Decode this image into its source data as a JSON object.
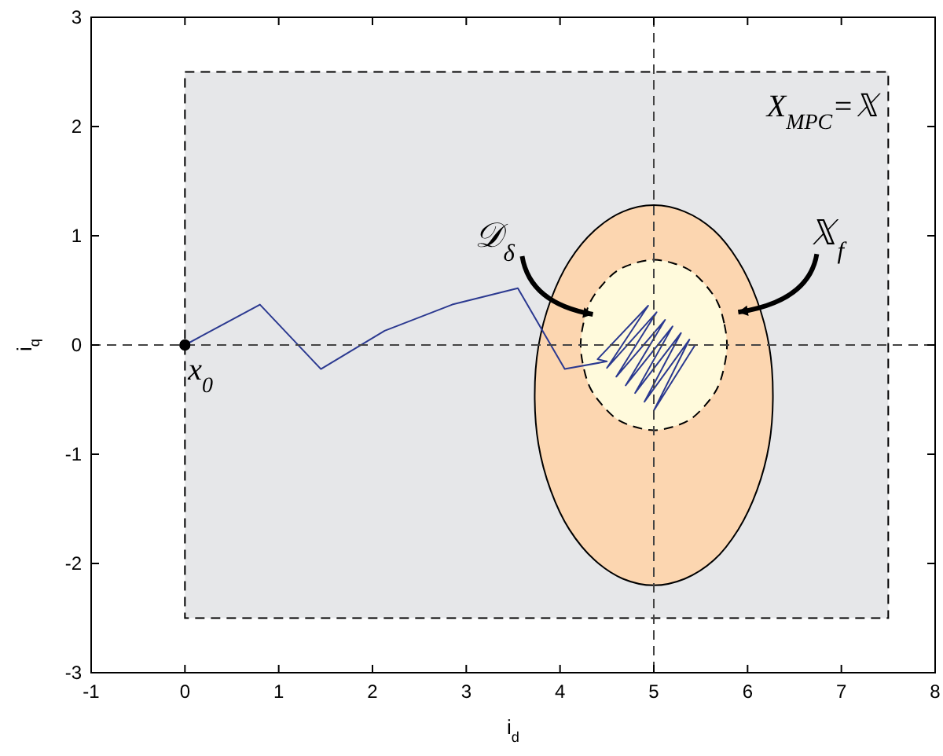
{
  "chart_data": {
    "type": "line",
    "xlabel": "i$_{d}$",
    "ylabel": "i$_{q}$",
    "xlim": [
      -1,
      8
    ],
    "ylim": [
      -3,
      3
    ],
    "xticks": [
      -1,
      0,
      1,
      2,
      3,
      4,
      5,
      6,
      7,
      8
    ],
    "yticks": [
      -3,
      -2,
      -1,
      0,
      1,
      2,
      3
    ],
    "grid": false,
    "series": [
      {
        "type": "area",
        "color": "#e6e7e9",
        "line_style": "dashed",
        "x": [
          0,
          7.5,
          7.5,
          0,
          0
        ],
        "values": [
          2.5,
          2.5,
          -2.5,
          -2.5,
          2.5
        ]
      },
      {
        "type": "area",
        "color": "#fcd6b0",
        "line_style": "solid",
        "x": [
          6.27,
          6.23,
          6.1,
          5.9,
          5.64,
          5.33,
          5.0,
          4.67,
          4.37,
          4.1,
          3.9,
          3.77,
          3.73,
          3.77,
          3.9,
          4.1,
          4.37,
          4.67,
          5.0,
          5.33,
          5.64,
          5.9,
          6.1,
          6.23,
          6.27
        ],
        "values": [
          -0.46,
          -0.01,
          0.41,
          0.77,
          1.05,
          1.22,
          1.28,
          1.22,
          1.05,
          0.77,
          0.41,
          -0.01,
          -0.46,
          -0.91,
          -1.33,
          -1.69,
          -1.97,
          -2.14,
          -2.2,
          -2.14,
          -1.97,
          -1.69,
          -1.33,
          -0.91,
          -0.46
        ]
      },
      {
        "type": "area",
        "color": "#fffadc",
        "line_style": "dashed",
        "x": [
          5.78,
          5.75,
          5.68,
          5.55,
          5.39,
          5.2,
          5.0,
          4.8,
          4.61,
          4.45,
          4.32,
          4.25,
          4.22,
          4.25,
          4.32,
          4.45,
          4.61,
          4.8,
          5.0,
          5.2,
          5.39,
          5.55,
          5.68,
          5.75,
          5.78
        ],
        "values": [
          0,
          0.2,
          0.39,
          0.55,
          0.68,
          0.75,
          0.78,
          0.75,
          0.68,
          0.55,
          0.39,
          0.2,
          0,
          -0.2,
          -0.39,
          -0.55,
          -0.68,
          -0.75,
          -0.78,
          -0.75,
          -0.68,
          -0.55,
          -0.39,
          -0.2,
          0
        ]
      },
      {
        "color": "#2b3990",
        "line_style": "solid",
        "x": [
          0,
          0.8,
          1.45,
          2.13,
          2.85,
          3.55,
          4.05,
          4.5,
          4.4,
          4.94,
          4.5,
          5.03,
          4.6,
          5.12,
          4.7,
          5.2,
          4.8,
          5.29,
          4.9,
          5.38,
          5.0,
          5.44
        ],
        "values": [
          0,
          0.37,
          -0.22,
          0.13,
          0.37,
          0.52,
          -0.22,
          -0.15,
          -0.13,
          0.36,
          -0.21,
          0.3,
          -0.29,
          0.23,
          -0.37,
          0.17,
          -0.44,
          0.11,
          -0.52,
          0.05,
          -0.6,
          0
        ]
      },
      {
        "type": "scatter",
        "color": "#000000",
        "marker": "circle",
        "x": [
          0
        ],
        "values": [
          0
        ]
      }
    ],
    "ref_lines": [
      {
        "axis": "x",
        "value": 5,
        "line_style": "dashed",
        "color": "#444444"
      },
      {
        "axis": "y",
        "value": 0,
        "line_style": "dashed",
        "color": "#444444"
      }
    ],
    "annotations": [
      "X$_{MPC}$=𝕏",
      {
        "text": "x$_{0}$",
        "x": 0,
        "y": 0
      },
      {
        "text": "𝒟$_{δ}$",
        "x": 4.35,
        "y": 0.28
      },
      "𝕏$_{f}$"
    ]
  }
}
